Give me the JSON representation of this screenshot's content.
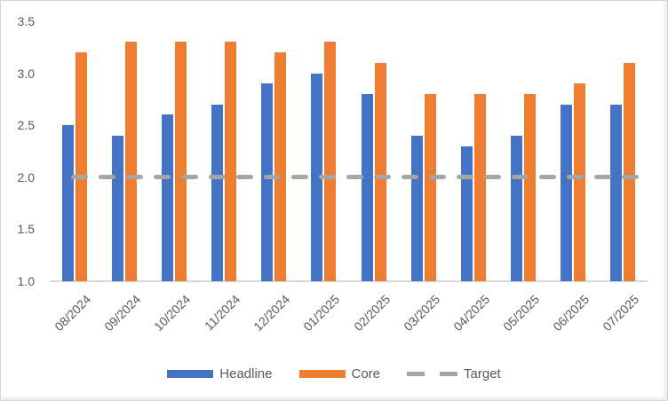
{
  "chart_data": {
    "type": "bar",
    "title": "",
    "categories": [
      "08/2024",
      "09/2024",
      "10/2024",
      "11/2024",
      "12/2024",
      "01/2025",
      "02/2025",
      "03/2025",
      "04/2025",
      "05/2025",
      "06/2025",
      "07/2025"
    ],
    "series": [
      {
        "name": "Headline",
        "color": "#4472C4",
        "values": [
          2.5,
          2.4,
          2.6,
          2.7,
          2.9,
          3.0,
          2.8,
          2.4,
          2.3,
          2.4,
          2.7,
          2.7
        ]
      },
      {
        "name": "Core",
        "color": "#ED7D31",
        "values": [
          3.2,
          3.3,
          3.3,
          3.3,
          3.2,
          3.3,
          3.1,
          2.8,
          2.8,
          2.8,
          2.9,
          3.1
        ]
      }
    ],
    "target_line": {
      "name": "Target",
      "value": 2.0,
      "color": "#A5A5A5",
      "style": "dashed"
    },
    "ylim": [
      1.0,
      3.5
    ],
    "yticks": [
      3.5,
      3.0,
      2.5,
      2.0,
      1.5,
      1.0
    ],
    "ytick_labels": [
      "3.5",
      "3.0",
      "2.5",
      "2.0",
      "1.5",
      "1.0"
    ],
    "grid": false,
    "legend_position": "bottom",
    "axis_text_color": "#595959",
    "axis_line_color": "#D9D9D9",
    "background": "#FFFFFF"
  }
}
